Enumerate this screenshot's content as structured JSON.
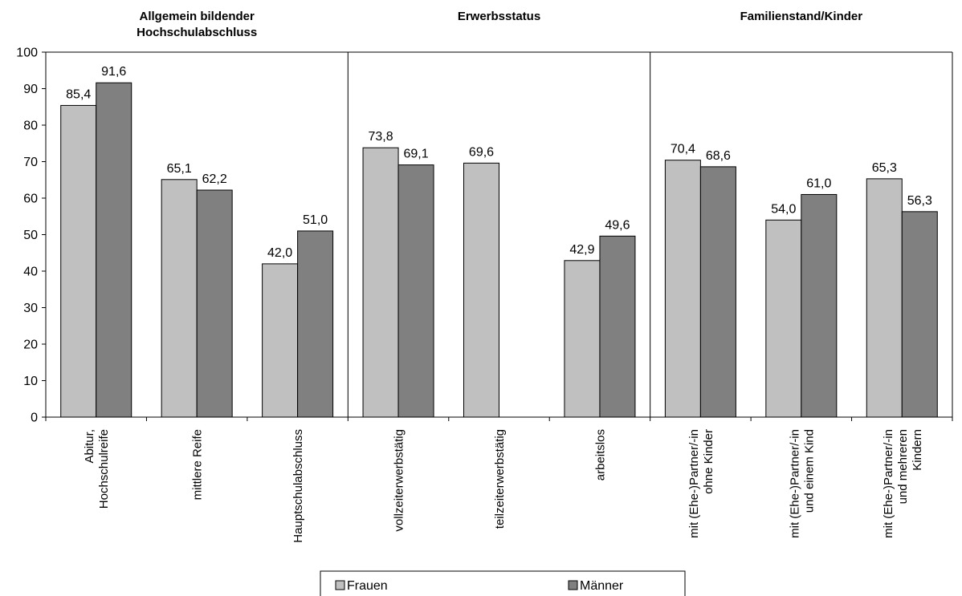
{
  "chart_data": {
    "type": "bar",
    "group_titles": [
      [
        "Allgemein bildender",
        "Hochschulabschluss"
      ],
      [
        "Erwerbsstatus"
      ],
      [
        "Familienstand/Kinder"
      ]
    ],
    "groups": [
      [
        0,
        1,
        2
      ],
      [
        3,
        4,
        5
      ],
      [
        6,
        7,
        8
      ]
    ],
    "categories": [
      [
        "Abitur,",
        "Hochschulreife"
      ],
      [
        "mittlere Reife"
      ],
      [
        "Hauptschulabschluss"
      ],
      [
        "vollzeiterwerbstätig"
      ],
      [
        "teilzeiterwerbstätig"
      ],
      [
        "arbeitslos"
      ],
      [
        "mit (Ehe-)Partner/-in",
        "ohne Kinder"
      ],
      [
        "mit (Ehe-)Partner/-in",
        "und einem Kind"
      ],
      [
        "mit (Ehe-)Partner/-in",
        "und mehreren",
        "Kindern"
      ]
    ],
    "series": [
      {
        "name": "Frauen",
        "color": "#c0c0c0",
        "values": [
          85.4,
          65.1,
          42.0,
          73.8,
          69.6,
          42.9,
          70.4,
          54.0,
          65.3
        ],
        "labels": [
          "85,4",
          "65,1",
          "42,0",
          "73,8",
          "69,6",
          "42,9",
          "70,4",
          "54,0",
          "65,3"
        ]
      },
      {
        "name": "Männer",
        "color": "#808080",
        "values": [
          91.6,
          62.2,
          51.0,
          69.1,
          null,
          49.6,
          68.6,
          61.0,
          56.3
        ],
        "labels": [
          "91,6",
          "62,2",
          "51,0",
          "69,1",
          null,
          "49,6",
          "68,6",
          "61,0",
          "56,3"
        ]
      }
    ],
    "ylim": [
      0,
      100
    ],
    "yticks": [
      "0",
      "10",
      "20",
      "30",
      "40",
      "50",
      "60",
      "70",
      "80",
      "90",
      "100"
    ],
    "legend_position": "bottom-center",
    "grid": false
  }
}
